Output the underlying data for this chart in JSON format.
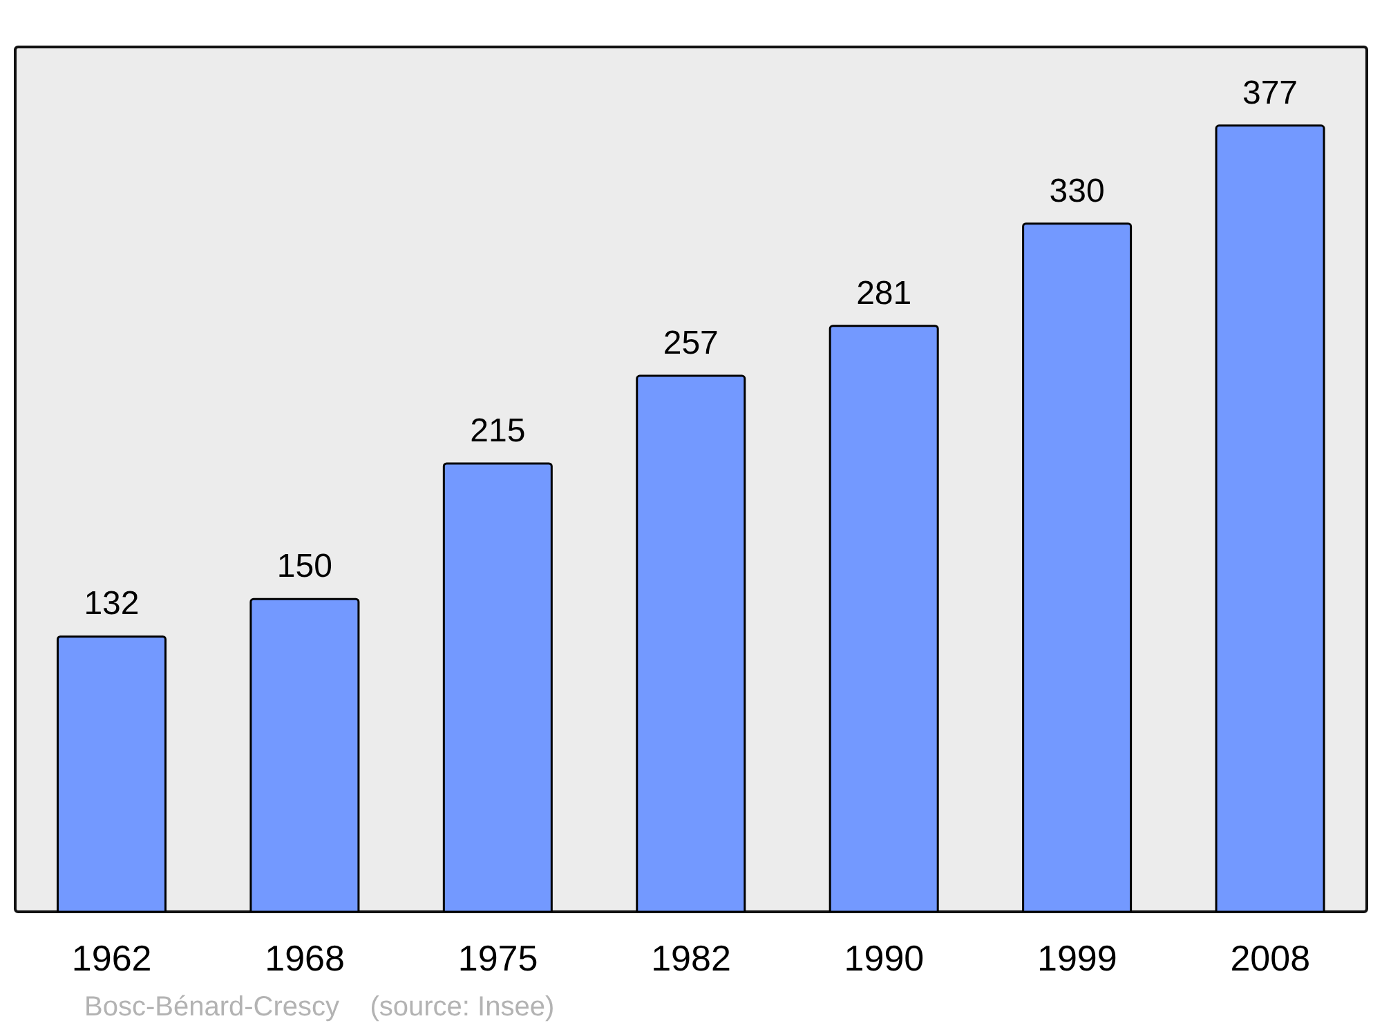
{
  "chart_data": {
    "type": "bar",
    "categories": [
      "1962",
      "1968",
      "1975",
      "1982",
      "1990",
      "1999",
      "2008"
    ],
    "values": [
      132,
      150,
      215,
      257,
      281,
      330,
      377
    ],
    "color": "#7399ff",
    "data_labels": true,
    "annotations": [
      "Bosc-Bénard-Crescy    (source: Insee)"
    ]
  }
}
